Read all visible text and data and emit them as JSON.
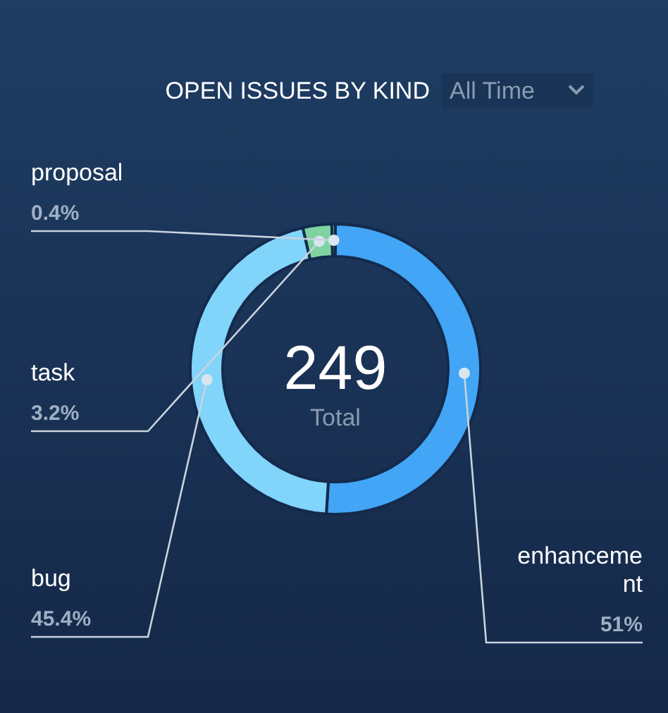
{
  "chart_data": {
    "type": "donut",
    "title": "OPEN ISSUES BY KIND",
    "subtitle": "All Time",
    "categories": [
      "enhancement",
      "bug",
      "task",
      "proposal"
    ],
    "values": [
      51,
      45.4,
      3.2,
      0.4
    ],
    "value_labels": [
      "51%",
      "45.4%",
      "3.2%",
      "0.4%"
    ],
    "colors": [
      "#42a5f5",
      "#81d4fa",
      "#7fd3a0",
      "#4cb86a"
    ],
    "annotations": [
      "249",
      "Total"
    ]
  }
}
